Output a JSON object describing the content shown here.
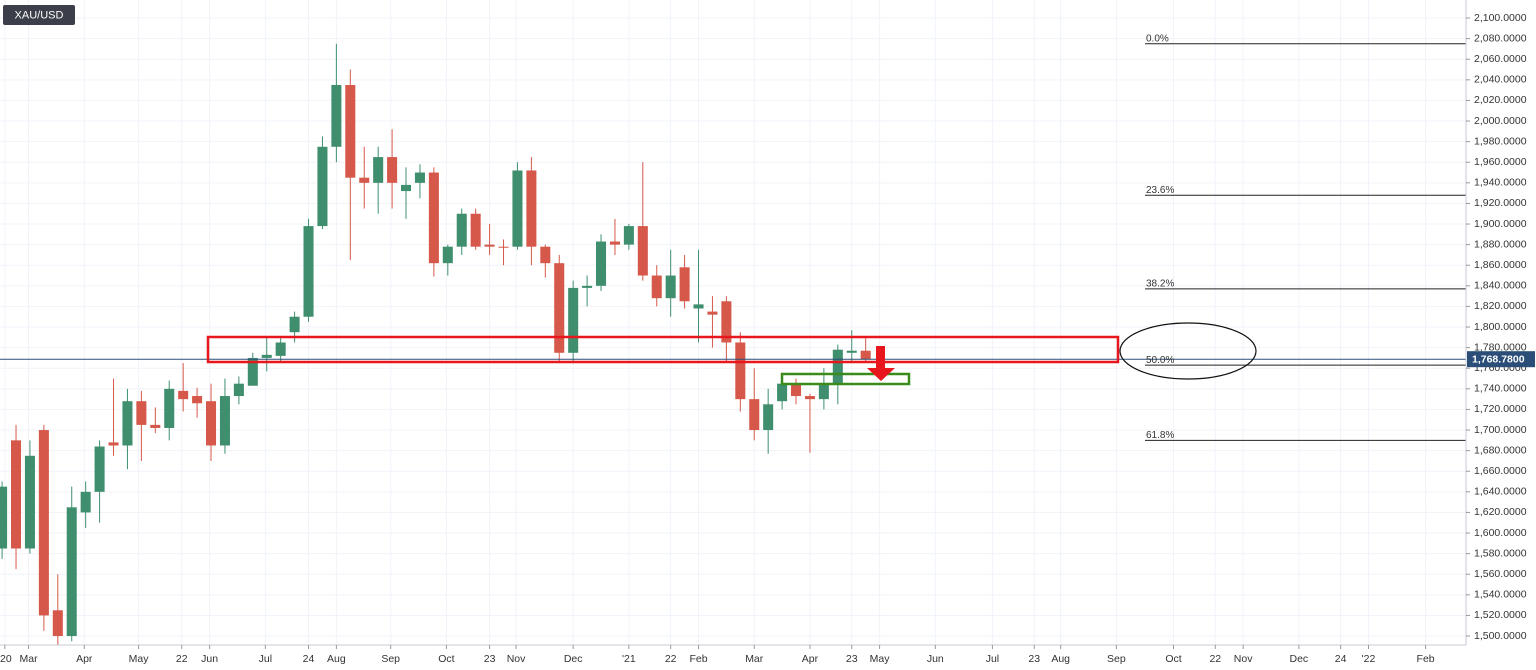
{
  "chart_data": {
    "type": "candlestick",
    "symbol": "XAU/USD",
    "up_color": "#3f8f6f",
    "down_color": "#d6584a",
    "x": [
      0,
      1,
      2,
      3,
      4,
      5,
      6,
      7,
      8,
      9,
      10,
      11,
      12,
      13,
      14,
      15,
      16,
      17,
      18,
      19,
      20,
      21,
      22,
      23,
      24,
      25,
      26,
      27,
      28,
      29,
      30,
      31,
      32,
      33,
      34,
      35,
      36,
      37,
      38,
      39,
      40,
      41,
      42,
      43,
      44,
      45,
      46,
      47,
      48,
      49,
      50,
      51,
      52,
      53,
      54,
      55,
      56,
      57,
      58,
      59,
      60,
      61,
      62
    ],
    "open": [
      1585,
      1690,
      1585,
      1700,
      1525,
      1500,
      1620,
      1640,
      1688,
      1685,
      1728,
      1705,
      1702,
      1738,
      1733,
      1728,
      1685,
      1733,
      1743,
      1770,
      1772,
      1795,
      1810,
      1898,
      1975,
      2035,
      1945,
      1940,
      1965,
      1932,
      1940,
      1950,
      1862,
      1878,
      1910,
      1880,
      1878,
      1878,
      1952,
      1878,
      1862,
      1775,
      1838,
      1840,
      1883,
      1880,
      1898,
      1850,
      1828,
      1858,
      1818,
      1815,
      1825,
      1785,
      1730,
      1700,
      1728,
      1745,
      1733,
      1730,
      1745,
      1775,
      1777
    ],
    "high": [
      1650,
      1705,
      1690,
      1705,
      1560,
      1645,
      1650,
      1690,
      1750,
      1740,
      1738,
      1722,
      1748,
      1765,
      1741,
      1745,
      1750,
      1752,
      1775,
      1790,
      1790,
      1815,
      1905,
      1985,
      2075,
      2050,
      1975,
      1975,
      1992,
      1955,
      1958,
      1955,
      1880,
      1915,
      1915,
      1900,
      1885,
      1960,
      1965,
      1880,
      1870,
      1845,
      1850,
      1890,
      1905,
      1900,
      1960,
      1860,
      1875,
      1870,
      1875,
      1830,
      1830,
      1795,
      1760,
      1740,
      1750,
      1750,
      1735,
      1760,
      1783,
      1797,
      1790
    ],
    "low": [
      1575,
      1565,
      1580,
      1505,
      1470,
      1495,
      1605,
      1610,
      1675,
      1662,
      1670,
      1697,
      1690,
      1718,
      1712,
      1670,
      1677,
      1725,
      1743,
      1757,
      1766,
      1785,
      1805,
      1895,
      1960,
      1865,
      1915,
      1910,
      1915,
      1905,
      1925,
      1849,
      1850,
      1870,
      1875,
      1870,
      1860,
      1875,
      1860,
      1848,
      1765,
      1765,
      1820,
      1835,
      1870,
      1875,
      1845,
      1820,
      1810,
      1818,
      1785,
      1780,
      1765,
      1718,
      1690,
      1677,
      1720,
      1725,
      1678,
      1720,
      1725,
      1765,
      1765
    ],
    "close": [
      1645,
      1585,
      1675,
      1520,
      1500,
      1625,
      1640,
      1684,
      1685,
      1728,
      1705,
      1702,
      1740,
      1730,
      1726,
      1685,
      1733,
      1745,
      1770,
      1773,
      1785,
      1810,
      1898,
      1975,
      2035,
      1945,
      1940,
      1965,
      1940,
      1938,
      1950,
      1862,
      1878,
      1910,
      1878,
      1878,
      1877,
      1952,
      1878,
      1862,
      1775,
      1838,
      1840,
      1883,
      1880,
      1898,
      1850,
      1828,
      1850,
      1825,
      1822,
      1812,
      1785,
      1730,
      1700,
      1725,
      1745,
      1733,
      1730,
      1745,
      1778,
      1777,
      1768.78
    ],
    "xlim": [
      -0.15,
      105.1
    ],
    "xticks": [
      {
        "value": 0.2,
        "label": "'20"
      },
      {
        "value": 1.9,
        "label": "Mar"
      },
      {
        "value": 5.9,
        "label": "Apr"
      },
      {
        "value": 9.8,
        "label": "May"
      },
      {
        "value": 12.9,
        "label": "22"
      },
      {
        "value": 14.9,
        "label": "Jun"
      },
      {
        "value": 18.9,
        "label": "Jul"
      },
      {
        "value": 22.0,
        "label": "24"
      },
      {
        "value": 24.0,
        "label": "Aug"
      },
      {
        "value": 27.9,
        "label": "Sep"
      },
      {
        "value": 31.9,
        "label": "Oct"
      },
      {
        "value": 35.0,
        "label": "23"
      },
      {
        "value": 36.9,
        "label": "Nov"
      },
      {
        "value": 41.0,
        "label": "Dec"
      },
      {
        "value": 45.0,
        "label": "'21"
      },
      {
        "value": 48.0,
        "label": "22"
      },
      {
        "value": 50.0,
        "label": "Feb"
      },
      {
        "value": 54.0,
        "label": "Mar"
      },
      {
        "value": 58.0,
        "label": "Apr"
      },
      {
        "value": 61.0,
        "label": "23"
      },
      {
        "value": 63.0,
        "label": "May"
      },
      {
        "value": 67.0,
        "label": "Jun"
      },
      {
        "value": 71.1,
        "label": "Jul"
      },
      {
        "value": 74.1,
        "label": "23"
      },
      {
        "value": 76.0,
        "label": "Aug"
      },
      {
        "value": 80.0,
        "label": "Sep"
      },
      {
        "value": 84.1,
        "label": "Oct"
      },
      {
        "value": 87.1,
        "label": "22"
      },
      {
        "value": 89.1,
        "label": "Nov"
      },
      {
        "value": 93.1,
        "label": "Dec"
      },
      {
        "value": 96.1,
        "label": "24"
      },
      {
        "value": 98.1,
        "label": "'22"
      },
      {
        "value": 102.2,
        "label": "Feb"
      }
    ],
    "ylim": [
      1491.3,
      2117.5
    ],
    "yticks": [
      {
        "value": 1500,
        "label": "1,500.0000"
      },
      {
        "value": 1520,
        "label": "1,520.0000"
      },
      {
        "value": 1540,
        "label": "1,540.0000"
      },
      {
        "value": 1560,
        "label": "1,560.0000"
      },
      {
        "value": 1580,
        "label": "1,580.0000"
      },
      {
        "value": 1600,
        "label": "1,600.0000"
      },
      {
        "value": 1620,
        "label": "1,620.0000"
      },
      {
        "value": 1640,
        "label": "1,640.0000"
      },
      {
        "value": 1660,
        "label": "1,660.0000"
      },
      {
        "value": 1680,
        "label": "1,680.0000"
      },
      {
        "value": 1700,
        "label": "1,700.0000"
      },
      {
        "value": 1720,
        "label": "1,720.0000"
      },
      {
        "value": 1740,
        "label": "1,740.0000"
      },
      {
        "value": 1760,
        "label": "1,760.0000"
      },
      {
        "value": 1780,
        "label": "1,780.0000"
      },
      {
        "value": 1800,
        "label": "1,800.0000"
      },
      {
        "value": 1820,
        "label": "1,820.0000"
      },
      {
        "value": 1840,
        "label": "1,840.0000"
      },
      {
        "value": 1860,
        "label": "1,860.0000"
      },
      {
        "value": 1880,
        "label": "1,880.0000"
      },
      {
        "value": 1900,
        "label": "1,900.0000"
      },
      {
        "value": 1920,
        "label": "1,920.0000"
      },
      {
        "value": 1940,
        "label": "1,940.0000"
      },
      {
        "value": 1960,
        "label": "1,960.0000"
      },
      {
        "value": 1980,
        "label": "1,980.0000"
      },
      {
        "value": 2000,
        "label": "2,000.0000"
      },
      {
        "value": 2020,
        "label": "2,020.0000"
      },
      {
        "value": 2040,
        "label": "2,040.0000"
      },
      {
        "value": 2060,
        "label": "2,060.0000"
      },
      {
        "value": 2080,
        "label": "2,080.0000"
      },
      {
        "value": 2100,
        "label": "2,100.0000"
      }
    ],
    "grid": true,
    "fib_levels": [
      {
        "value": 2075,
        "label": "0.0%"
      },
      {
        "value": 1928,
        "label": "23.6%"
      },
      {
        "value": 1837,
        "label": "38.2%"
      },
      {
        "value": 1763,
        "label": "50.0%"
      },
      {
        "value": 1690,
        "label": "61.8%"
      }
    ],
    "last_price": {
      "value": 1768.78,
      "label": "1,768.7800"
    }
  }
}
